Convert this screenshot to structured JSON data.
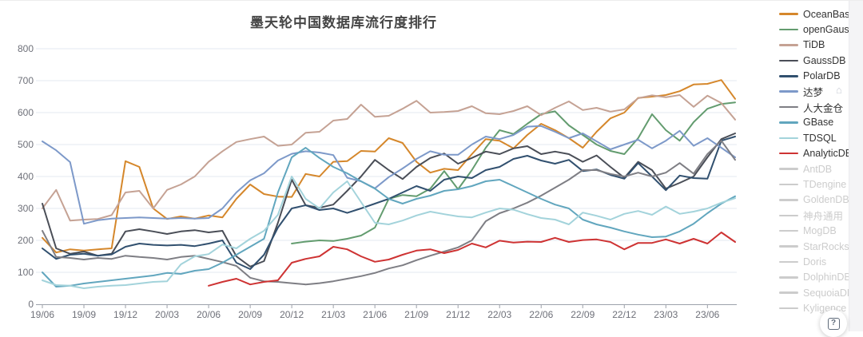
{
  "page": {
    "title": "墨天轮中国数据库流行度排行"
  },
  "palette": {
    "grid_line": "#E3E8F2",
    "axis_line": "#9CA1AA",
    "axis_label": "#6E7079",
    "title_color": "#454545",
    "inactive_legend": "#cccccc",
    "fab_icon": "#5f6b7a"
  },
  "help_button": {
    "icon": "boxed-question-icon",
    "glyph": "?"
  },
  "decorations": {
    "home_glyph": "⌂"
  },
  "chart_data": {
    "type": "line",
    "title": "墨天轮中国数据库流行度排行",
    "xlabel": "",
    "ylabel": "",
    "ylim": [
      0,
      800
    ],
    "y_ticks": [
      0,
      100,
      200,
      300,
      400,
      500,
      600,
      700,
      800
    ],
    "grid": "on",
    "legend_position": "right",
    "x": [
      "19/06",
      "19/07",
      "19/08",
      "19/09",
      "19/10",
      "19/11",
      "19/12",
      "20/01",
      "20/02",
      "20/03",
      "20/04",
      "20/05",
      "20/06",
      "20/07",
      "20/08",
      "20/09",
      "20/10",
      "20/11",
      "20/12",
      "21/01",
      "21/02",
      "21/03",
      "21/04",
      "21/05",
      "21/06",
      "21/07",
      "21/08",
      "21/09",
      "21/10",
      "21/11",
      "21/12",
      "22/01",
      "22/02",
      "22/03",
      "22/04",
      "22/05",
      "22/06",
      "22/07",
      "22/08",
      "22/09",
      "22/10",
      "22/11",
      "22/12",
      "23/01",
      "23/02",
      "23/03",
      "23/04",
      "23/05",
      "23/06",
      "23/07",
      "23/08"
    ],
    "x_tick_labels": [
      "19/06",
      "19/09",
      "19/12",
      "20/03",
      "20/06",
      "20/09",
      "20/12",
      "21/03",
      "21/06",
      "21/09",
      "21/12",
      "22/03",
      "22/06",
      "22/09",
      "22/12",
      "23/03",
      "23/06"
    ],
    "series": [
      {
        "name": "OceanBase",
        "color": "#D5872B",
        "active": true,
        "values": [
          208,
          162,
          172,
          168,
          172,
          175,
          448,
          430,
          300,
          267,
          275,
          268,
          278,
          272,
          330,
          375,
          345,
          337,
          336,
          408,
          400,
          446,
          448,
          480,
          478,
          520,
          505,
          446,
          412,
          424,
          420,
          470,
          517,
          512,
          488,
          530,
          565,
          545,
          520,
          490,
          540,
          582,
          600,
          646,
          650,
          655,
          667,
          688,
          690,
          702,
          643
        ]
      },
      {
        "name": "openGauss",
        "color": "#639C6F",
        "active": true,
        "values": [
          null,
          null,
          null,
          null,
          null,
          null,
          null,
          null,
          null,
          null,
          null,
          null,
          null,
          null,
          null,
          null,
          null,
          null,
          190,
          196,
          200,
          198,
          205,
          215,
          240,
          330,
          342,
          338,
          362,
          417,
          360,
          420,
          490,
          545,
          533,
          565,
          595,
          604,
          560,
          530,
          500,
          480,
          470,
          520,
          595,
          545,
          512,
          570,
          612,
          627,
          632
        ]
      },
      {
        "name": "TiDB",
        "color": "#C5A294",
        "active": true,
        "values": [
          300,
          358,
          262,
          265,
          267,
          279,
          350,
          355,
          300,
          358,
          375,
          400,
          446,
          479,
          508,
          517,
          525,
          496,
          500,
          537,
          540,
          575,
          580,
          625,
          587,
          590,
          612,
          637,
          600,
          602,
          605,
          620,
          598,
          595,
          605,
          620,
          592,
          615,
          635,
          608,
          615,
          603,
          610,
          645,
          654,
          648,
          655,
          618,
          653,
          630,
          578
        ]
      },
      {
        "name": "GaussDB",
        "color": "#4A4E57",
        "active": true,
        "values": [
          315,
          175,
          158,
          165,
          152,
          158,
          228,
          235,
          228,
          220,
          228,
          232,
          225,
          230,
          150,
          118,
          135,
          255,
          390,
          310,
          302,
          312,
          355,
          400,
          452,
          420,
          392,
          430,
          458,
          472,
          440,
          458,
          478,
          470,
          488,
          495,
          470,
          478,
          470,
          446,
          466,
          430,
          396,
          446,
          420,
          362,
          380,
          400,
          460,
          517,
          535
        ]
      },
      {
        "name": "PolarDB",
        "color": "#31506F",
        "active": true,
        "values": [
          175,
          142,
          155,
          158,
          152,
          156,
          180,
          190,
          186,
          184,
          186,
          182,
          190,
          200,
          130,
          110,
          155,
          240,
          300,
          310,
          295,
          300,
          286,
          300,
          315,
          330,
          350,
          370,
          355,
          390,
          400,
          395,
          420,
          430,
          455,
          465,
          450,
          440,
          452,
          417,
          422,
          405,
          393,
          442,
          400,
          357,
          403,
          395,
          393,
          512,
          525
        ]
      },
      {
        "name": "达梦",
        "color": "#7D99C9",
        "active": true,
        "values": [
          510,
          482,
          445,
          252,
          263,
          268,
          270,
          272,
          270,
          268,
          270,
          268,
          270,
          300,
          350,
          388,
          410,
          450,
          471,
          479,
          475,
          467,
          396,
          385,
          363,
          398,
          425,
          455,
          479,
          468,
          468,
          500,
          525,
          517,
          530,
          556,
          558,
          540,
          520,
          535,
          510,
          485,
          500,
          515,
          488,
          512,
          543,
          496,
          520,
          490,
          460
        ]
      },
      {
        "name": "人大金仓",
        "color": "#7E7E84",
        "active": true,
        "values": [
          230,
          148,
          145,
          140,
          145,
          142,
          152,
          148,
          145,
          140,
          148,
          152,
          142,
          132,
          120,
          83,
          72,
          70,
          66,
          62,
          66,
          72,
          80,
          88,
          98,
          112,
          122,
          138,
          152,
          165,
          178,
          200,
          260,
          285,
          300,
          318,
          340,
          365,
          390,
          420,
          420,
          408,
          400,
          412,
          400,
          412,
          442,
          409,
          470,
          512,
          452
        ]
      },
      {
        "name": "GBase",
        "color": "#61A6BE",
        "active": true,
        "values": [
          100,
          55,
          58,
          65,
          70,
          75,
          80,
          85,
          90,
          98,
          95,
          105,
          110,
          130,
          155,
          180,
          205,
          350,
          460,
          490,
          458,
          430,
          410,
          385,
          362,
          330,
          315,
          330,
          340,
          355,
          360,
          370,
          385,
          390,
          370,
          350,
          330,
          312,
          300,
          265,
          250,
          240,
          228,
          218,
          210,
          212,
          228,
          252,
          285,
          315,
          338
        ]
      },
      {
        "name": "TDSQL",
        "color": "#A3D3DB",
        "active": true,
        "values": [
          75,
          60,
          58,
          50,
          55,
          58,
          60,
          65,
          70,
          72,
          125,
          150,
          157,
          187,
          175,
          205,
          230,
          280,
          400,
          330,
          300,
          350,
          385,
          320,
          255,
          250,
          262,
          278,
          290,
          282,
          275,
          272,
          287,
          300,
          296,
          282,
          270,
          265,
          250,
          287,
          277,
          265,
          283,
          292,
          280,
          306,
          283,
          290,
          300,
          318,
          332
        ]
      },
      {
        "name": "AnalyticDB",
        "color": "#CE3333",
        "active": true,
        "values": [
          null,
          null,
          null,
          null,
          null,
          null,
          null,
          null,
          null,
          null,
          null,
          null,
          58,
          70,
          80,
          62,
          70,
          75,
          130,
          142,
          150,
          180,
          172,
          150,
          133,
          140,
          155,
          168,
          172,
          160,
          170,
          190,
          178,
          199,
          193,
          196,
          195,
          208,
          195,
          201,
          203,
          195,
          172,
          192,
          192,
          203,
          190,
          205,
          190,
          225,
          195
        ]
      },
      {
        "name": "AntDB",
        "color": "#cccccc",
        "active": false,
        "values": []
      },
      {
        "name": "TDengine",
        "color": "#cccccc",
        "active": false,
        "values": []
      },
      {
        "name": "GoldenDB",
        "color": "#cccccc",
        "active": false,
        "values": []
      },
      {
        "name": "神舟通用",
        "color": "#cccccc",
        "active": false,
        "values": []
      },
      {
        "name": "MogDB",
        "color": "#cccccc",
        "active": false,
        "values": []
      },
      {
        "name": "StarRocks",
        "color": "#cccccc",
        "active": false,
        "values": []
      },
      {
        "name": "Doris",
        "color": "#cccccc",
        "active": false,
        "values": []
      },
      {
        "name": "DolphinDB",
        "color": "#cccccc",
        "active": false,
        "values": []
      },
      {
        "name": "SequoiaDB",
        "color": "#cccccc",
        "active": false,
        "values": []
      },
      {
        "name": "Kyligence",
        "color": "#cccccc",
        "active": false,
        "values": []
      }
    ]
  }
}
